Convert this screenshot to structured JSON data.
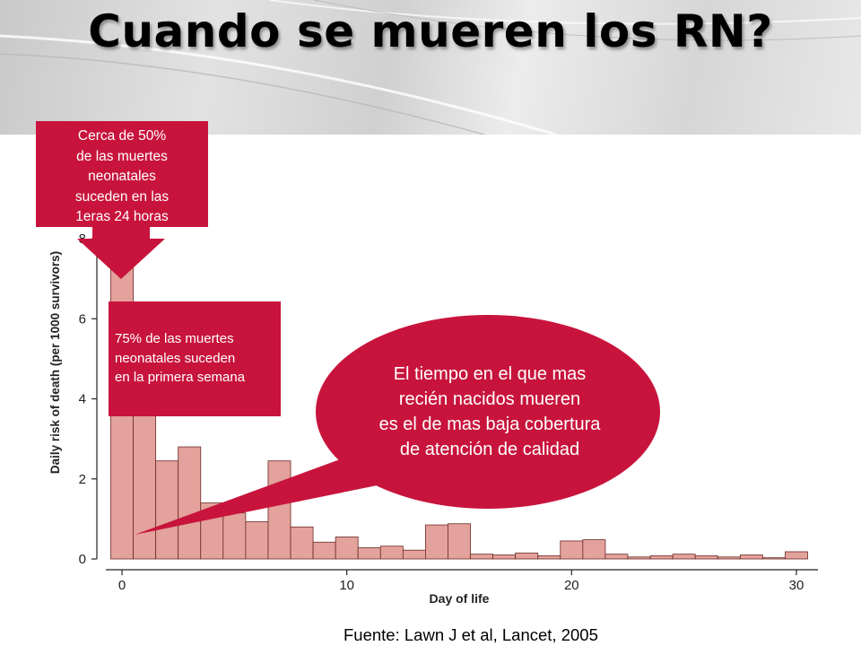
{
  "slide": {
    "title": "Cuando se mueren los RN?",
    "source": "Fuente: Lawn J et al, Lancet, 2005"
  },
  "notes": {
    "first_day": [
      "Cerca de 50%",
      "de las muertes",
      "neonatales",
      "suceden en las",
      "1eras 24 horas"
    ],
    "first_week": [
      "75% de las muertes",
      "neonatales suceden",
      "en la primera semana"
    ],
    "callout": [
      "El tiempo en el que mas",
      "recién nacidos mueren",
      "es el de mas baja cobertura",
      "de atención de calidad"
    ]
  },
  "colors": {
    "accent": "#c8143c",
    "bar_fill": "#e3a29b",
    "bar_stroke": "#6b2a26"
  },
  "chart_data": {
    "type": "bar",
    "xlabel": "Day of life",
    "ylabel": "Daily risk of death (per 1000 survivors)",
    "xlim": [
      -0.5,
      30.5
    ],
    "ylim": [
      0,
      8
    ],
    "x_ticks": [
      0,
      10,
      20,
      30
    ],
    "y_ticks": [
      0,
      2,
      4,
      6,
      8
    ],
    "categories": [
      0,
      1,
      2,
      3,
      4,
      5,
      6,
      7,
      8,
      9,
      10,
      11,
      12,
      13,
      14,
      15,
      16,
      17,
      18,
      19,
      20,
      21,
      22,
      23,
      24,
      25,
      26,
      27,
      28,
      29,
      30
    ],
    "values": [
      8.0,
      4.0,
      2.45,
      2.8,
      1.4,
      1.15,
      0.93,
      2.45,
      0.8,
      0.42,
      0.55,
      0.28,
      0.32,
      0.22,
      0.85,
      0.88,
      0.12,
      0.1,
      0.15,
      0.08,
      0.45,
      0.48,
      0.12,
      0.05,
      0.08,
      0.12,
      0.08,
      0.05,
      0.1,
      0.03,
      0.18
    ]
  }
}
